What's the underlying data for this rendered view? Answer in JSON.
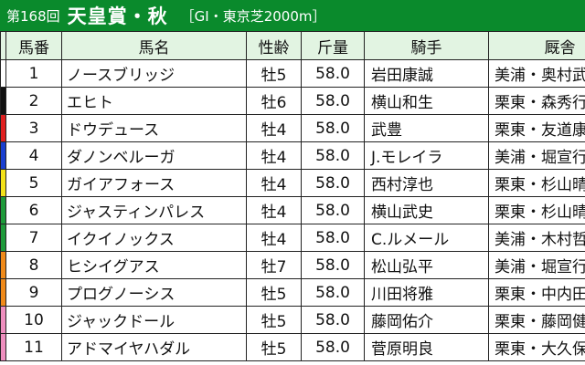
{
  "header": {
    "round": "第168回",
    "race_name": "天皇賞・秋",
    "race_info": "［GI・東京芝2000m］"
  },
  "columns": {
    "number": "馬番",
    "name": "馬名",
    "sex_age": "性齢",
    "weight": "斤量",
    "jockey": "騎手",
    "stable": "厩舎"
  },
  "colors": {
    "header_bg": "#0a8a2c",
    "column_header_bg": "#e2f4e2",
    "frame_colors": [
      "#ffffff",
      "#111111",
      "#e02020",
      "#1a3fd0",
      "#f3e21a",
      "#1e9a3a",
      "#f08a1a",
      "#ef8fbf"
    ]
  },
  "rows": [
    {
      "number": "1",
      "name": "ノースブリッジ",
      "sex_age": "牡5",
      "weight": "58.0",
      "jockey": "岩田康誠",
      "stable": "美浦・奥村武",
      "frame_color": "#ffffff"
    },
    {
      "number": "2",
      "name": "エヒト",
      "sex_age": "牡6",
      "weight": "58.0",
      "jockey": "横山和生",
      "stable": "栗東・森秀行",
      "frame_color": "#111111"
    },
    {
      "number": "3",
      "name": "ドウデュース",
      "sex_age": "牡4",
      "weight": "58.0",
      "jockey": "武豊",
      "stable": "栗東・友道康",
      "frame_color": "#e02020"
    },
    {
      "number": "4",
      "name": "ダノンベルーガ",
      "sex_age": "牡4",
      "weight": "58.0",
      "jockey": "J.モレイラ",
      "stable": "美浦・堀宣行",
      "frame_color": "#1a3fd0"
    },
    {
      "number": "5",
      "name": "ガイアフォース",
      "sex_age": "牡4",
      "weight": "58.0",
      "jockey": "西村淳也",
      "stable": "栗東・杉山晴",
      "frame_color": "#f3e21a"
    },
    {
      "number": "6",
      "name": "ジャスティンパレス",
      "sex_age": "牡4",
      "weight": "58.0",
      "jockey": "横山武史",
      "stable": "栗東・杉山晴",
      "frame_color": "#1e9a3a"
    },
    {
      "number": "7",
      "name": "イクイノックス",
      "sex_age": "牡4",
      "weight": "58.0",
      "jockey": "C.ルメール",
      "stable": "美浦・木村哲",
      "frame_color": "#1e9a3a"
    },
    {
      "number": "8",
      "name": "ヒシイグアス",
      "sex_age": "牡7",
      "weight": "58.0",
      "jockey": "松山弘平",
      "stable": "美浦・堀宣行",
      "frame_color": "#f08a1a"
    },
    {
      "number": "9",
      "name": "プログノーシス",
      "sex_age": "牡5",
      "weight": "58.0",
      "jockey": "川田将雅",
      "stable": "栗東・中内田",
      "frame_color": "#f08a1a"
    },
    {
      "number": "10",
      "name": "ジャックドール",
      "sex_age": "牡5",
      "weight": "58.0",
      "jockey": "藤岡佑介",
      "stable": "栗東・藤岡健",
      "frame_color": "#ef8fbf"
    },
    {
      "number": "11",
      "name": "アドマイヤハダル",
      "sex_age": "牡5",
      "weight": "58.0",
      "jockey": "菅原明良",
      "stable": "栗東・大久保",
      "frame_color": "#ef8fbf"
    }
  ]
}
